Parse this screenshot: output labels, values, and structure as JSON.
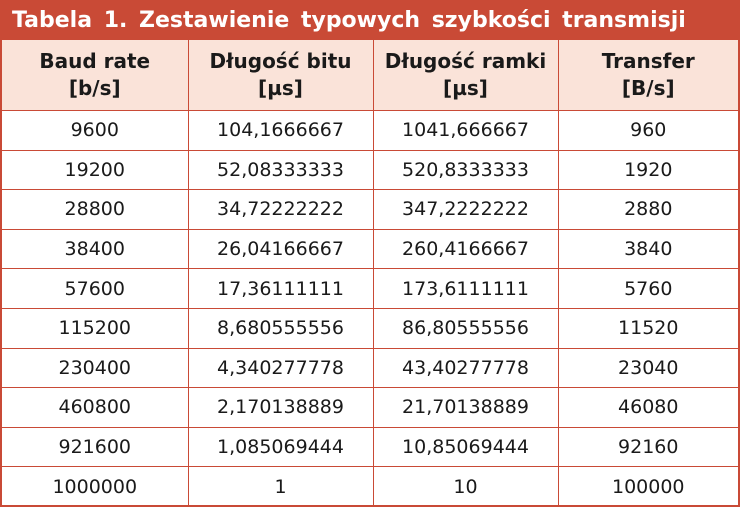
{
  "title": "Tabela 1. Zestawienie typowych szybkości transmisji",
  "columns": [
    {
      "line1": "Baud rate",
      "line2": "[b/s]"
    },
    {
      "line1": "Długość bitu",
      "line2": "[µs]"
    },
    {
      "line1": "Długość ramki",
      "line2": "[µs]"
    },
    {
      "line1": "Transfer",
      "line2": "[B/s]"
    }
  ],
  "rows": [
    [
      "9600",
      "104,1666667",
      "1041,666667",
      "960"
    ],
    [
      "19200",
      "52,08333333",
      "520,8333333",
      "1920"
    ],
    [
      "28800",
      "34,72222222",
      "347,2222222",
      "2880"
    ],
    [
      "38400",
      "26,04166667",
      "260,4166667",
      "3840"
    ],
    [
      "57600",
      "17,36111111",
      "173,6111111",
      "5760"
    ],
    [
      "115200",
      "8,680555556",
      "86,80555556",
      "11520"
    ],
    [
      "230400",
      "4,340277778",
      "43,40277778",
      "23040"
    ],
    [
      "460800",
      "2,170138889",
      "21,70138889",
      "46080"
    ],
    [
      "921600",
      "1,085069444",
      "10,85069444",
      "92160"
    ],
    [
      "1000000",
      "1",
      "10",
      "100000"
    ]
  ],
  "colors": {
    "accent": "#c94a36",
    "header_bg": "#fae3d9",
    "text": "#1a1a1a"
  }
}
